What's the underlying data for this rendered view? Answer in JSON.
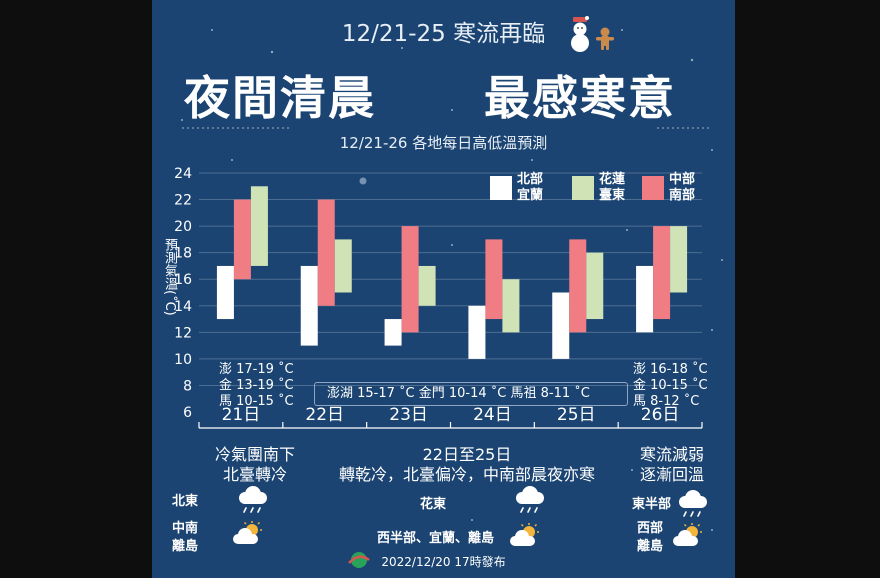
{
  "header": {
    "title": "12/21-25 寒流再臨",
    "headline_left": "夜間清晨",
    "headline_right": "最感寒意",
    "subtitle": "12/21-26 各地每日高低溫預測"
  },
  "colors": {
    "background": "#1b4472",
    "north": "#ffffff",
    "east": "#cfe3b7",
    "central_south": "#f07d83"
  },
  "islands": {
    "left": [
      "澎 17-19 ˚C",
      "金 13-19 ˚C",
      "馬 10-15 ˚C"
    ],
    "middle": "澎湖 15-17 ˚C   金門 10-14 ˚C   馬祖 8-11 ˚C",
    "right": [
      "澎 16-18 ˚C",
      "金 10-15 ˚C",
      "馬 8-12 ˚C"
    ]
  },
  "descriptions": {
    "day21_line1": "冷氣團南下",
    "day21_line2": "北臺轉冷",
    "mid_line1": "22日至25日",
    "mid_line2": "轉乾冷，北臺偏冷，中南部晨夜亦寒",
    "day26_line1": "寒流減弱",
    "day26_line2": "逐漸回溫"
  },
  "weather": {
    "left_north_east": "北東",
    "left_south_1": "中南",
    "left_south_2": "離島",
    "mid_east": "花東",
    "mid_west": "西半部、宜蘭、離島",
    "right_east": "東半部",
    "right_west_1": "西部",
    "right_west_2": "離島"
  },
  "icons": [
    "rain-cloud-icon",
    "sun-cloud-icon",
    "snowman-icon",
    "gingerbread-icon",
    "cwb-logo-icon"
  ],
  "footer": "2022/12/20 17時發布",
  "chart_data": {
    "type": "bar",
    "subtype": "floating-range",
    "title": "12/21-26 各地每日高低溫預測",
    "ylabel": "預測氣溫(˚C)",
    "ylim": [
      6,
      24
    ],
    "yticks": [
      6,
      8,
      10,
      12,
      14,
      16,
      18,
      20,
      22,
      24
    ],
    "categories": [
      "21日",
      "22日",
      "23日",
      "24日",
      "25日",
      "26日"
    ],
    "grid": true,
    "legend_position": "top-right",
    "series": [
      {
        "name": "北部 宜蘭",
        "label1": "北部",
        "label2": "宜蘭",
        "color": "#ffffff",
        "ranges": [
          [
            13,
            17
          ],
          [
            11,
            17
          ],
          [
            11,
            13
          ],
          [
            10,
            14
          ],
          [
            10,
            15
          ],
          [
            12,
            17
          ]
        ]
      },
      {
        "name": "中部 南部",
        "label1": "中部",
        "label2": "南部",
        "color": "#f07d83",
        "ranges": [
          [
            16,
            22
          ],
          [
            14,
            22
          ],
          [
            12,
            20
          ],
          [
            13,
            19
          ],
          [
            12,
            19
          ],
          [
            13,
            20
          ]
        ]
      },
      {
        "name": "花蓮 臺東",
        "label1": "花蓮",
        "label2": "臺東",
        "color": "#cfe3b7",
        "ranges": [
          [
            17,
            23
          ],
          [
            15,
            19
          ],
          [
            14,
            17
          ],
          [
            12,
            16
          ],
          [
            13,
            18
          ],
          [
            15,
            20
          ]
        ]
      }
    ]
  }
}
